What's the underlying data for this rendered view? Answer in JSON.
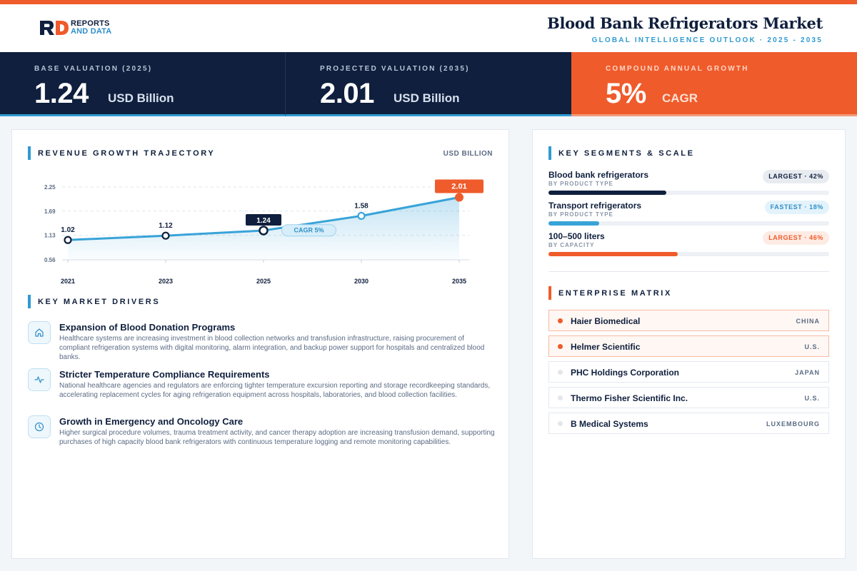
{
  "brand": {
    "line1": "REPORTS",
    "line2": "AND DATA"
  },
  "header": {
    "title": "Blood Bank Refrigerators Market",
    "subtitle": "GLOBAL INTELLIGENCE OUTLOOK · 2025 - 2035"
  },
  "kpis": [
    {
      "label": "BASE VALUATION (2025)",
      "value": "1.24",
      "unit": "USD Billion"
    },
    {
      "label": "PROJECTED VALUATION (2035)",
      "value": "2.01",
      "unit": "USD Billion"
    },
    {
      "label": "COMPOUND ANNUAL GROWTH",
      "value": "5%",
      "unit": "CAGR"
    }
  ],
  "revenue": {
    "title": "REVENUE GROWTH TRAJECTORY",
    "unit_note": "USD BILLION"
  },
  "chart_data": {
    "type": "line",
    "categories": [
      "2021",
      "2023",
      "2025",
      "2030",
      "2035"
    ],
    "values": [
      1.02,
      1.12,
      1.24,
      1.58,
      2.01
    ],
    "value_labels": [
      "1.02",
      "1.12",
      "1.24",
      "1.58",
      "2.01"
    ],
    "y_ticks": [
      "0.56",
      "1.13",
      "1.69",
      "2.25"
    ],
    "ylim": [
      0.56,
      2.25
    ],
    "annotation": "CAGR 5%",
    "highlight": [
      "2025",
      "2035"
    ],
    "grid": true,
    "colors": {
      "line": "#38a3d8",
      "navy": "#0f1f3d",
      "accent": "#ef5b2b"
    }
  },
  "drivers": {
    "title": "KEY MARKET DRIVERS",
    "items": [
      {
        "icon": "home-icon",
        "title": "Expansion of Blood Donation Programs",
        "desc": "Healthcare systems are increasing investment in blood collection networks and transfusion infrastructure, raising procurement of compliant refrigeration systems with digital monitoring, alarm integration, and backup power support for hospitals and centralized blood banks."
      },
      {
        "icon": "activity-icon",
        "title": "Stricter Temperature Compliance Requirements",
        "desc": "National healthcare agencies and regulators are enforcing tighter temperature excursion reporting and storage recordkeeping standards, accelerating replacement cycles for aging refrigeration equipment across hospitals, laboratories, and blood collection facilities."
      },
      {
        "icon": "clock-icon",
        "title": "Growth in Emergency and Oncology Care",
        "desc": "Higher surgical procedure volumes, trauma treatment activity, and cancer therapy adoption are increasing transfusion demand, supporting purchases of high capacity blood bank refrigerators with continuous temperature logging and remote monitoring capabilities."
      }
    ]
  },
  "segments": {
    "title": "KEY SEGMENTS & SCALE",
    "items": [
      {
        "name": "Blood bank refrigerators",
        "sub": "BY PRODUCT TYPE",
        "badge": "LARGEST · 42%",
        "share": 42,
        "color": "#0f1f3d",
        "style": "navy"
      },
      {
        "name": "Transport refrigerators",
        "sub": "BY PRODUCT TYPE",
        "badge": "FASTEST · 18%",
        "share": 18,
        "color": "#38a3d8",
        "style": "blue"
      },
      {
        "name": "100–500 liters",
        "sub": "BY CAPACITY",
        "badge": "LARGEST · 46%",
        "share": 46,
        "color": "#ef5b2b",
        "style": "orange"
      }
    ]
  },
  "matrix": {
    "title": "ENTERPRISE MATRIX",
    "items": [
      {
        "name": "Haier Biomedical",
        "country": "CHINA",
        "highlight": true
      },
      {
        "name": "Helmer Scientific",
        "country": "U.S.",
        "highlight": true
      },
      {
        "name": "PHC Holdings Corporation",
        "country": "JAPAN",
        "highlight": false
      },
      {
        "name": "Thermo Fisher Scientific Inc.",
        "country": "U.S.",
        "highlight": false
      },
      {
        "name": "B Medical Systems",
        "country": "LUXEMBOURG",
        "highlight": false
      }
    ]
  }
}
